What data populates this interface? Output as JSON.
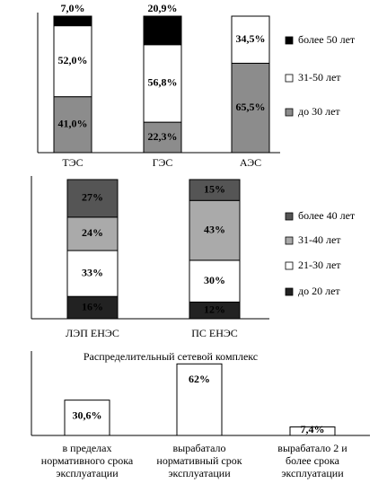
{
  "chart_data": [
    {
      "type": "bar",
      "stacked": true,
      "categories": [
        "ТЭС",
        "ГЭС",
        "АЭС"
      ],
      "ylim": [
        0,
        100
      ],
      "series": [
        {
          "name": "до 30 лет",
          "color": "#8c8c8c",
          "values": [
            41.0,
            22.3,
            65.5
          ],
          "value_labels": [
            "41,0%",
            "22,3%",
            "65,5%"
          ]
        },
        {
          "name": "31-50 лет",
          "color": "#ffffff",
          "values": [
            52.0,
            56.8,
            34.5
          ],
          "value_labels": [
            "52,0%",
            "56,8%",
            "34,5%"
          ]
        },
        {
          "name": "более 50 лет",
          "color": "#000000",
          "values": [
            7.0,
            20.9,
            0
          ],
          "value_labels": [
            "7,0%",
            "20,9%",
            null
          ]
        }
      ]
    },
    {
      "type": "bar",
      "stacked": true,
      "categories": [
        "ЛЭП ЕНЭС",
        "ПС ЕНЭС"
      ],
      "ylim": [
        0,
        100
      ],
      "series": [
        {
          "name": "до 20 лет",
          "color": "#222222",
          "values": [
            16,
            12
          ],
          "value_labels": [
            "16%",
            "12%"
          ]
        },
        {
          "name": "21-30 лет",
          "color": "#ffffff",
          "values": [
            33,
            30
          ],
          "value_labels": [
            "33%",
            "30%"
          ]
        },
        {
          "name": "31-40 лет",
          "color": "#aaaaaa",
          "values": [
            24,
            43
          ],
          "value_labels": [
            "24%",
            "43%"
          ]
        },
        {
          "name": "более 40 лет",
          "color": "#555555",
          "values": [
            27,
            15
          ],
          "value_labels": [
            "27%",
            "15%"
          ]
        }
      ]
    },
    {
      "type": "bar",
      "stacked": false,
      "title": "Распределительный сетевой комплекс",
      "categories": [
        "в пределах\nнормативного срока\nэксплуатации",
        "вырабатало\nнормативный срок\nэксплуатации",
        "вырабатало 2 и\nболее срока\nэксплуатации"
      ],
      "ylim": [
        0,
        70
      ],
      "color": "#ffffff",
      "values": [
        30.6,
        62,
        7.4
      ],
      "value_labels": [
        "30,6%",
        "62%",
        "7,4%"
      ]
    }
  ]
}
